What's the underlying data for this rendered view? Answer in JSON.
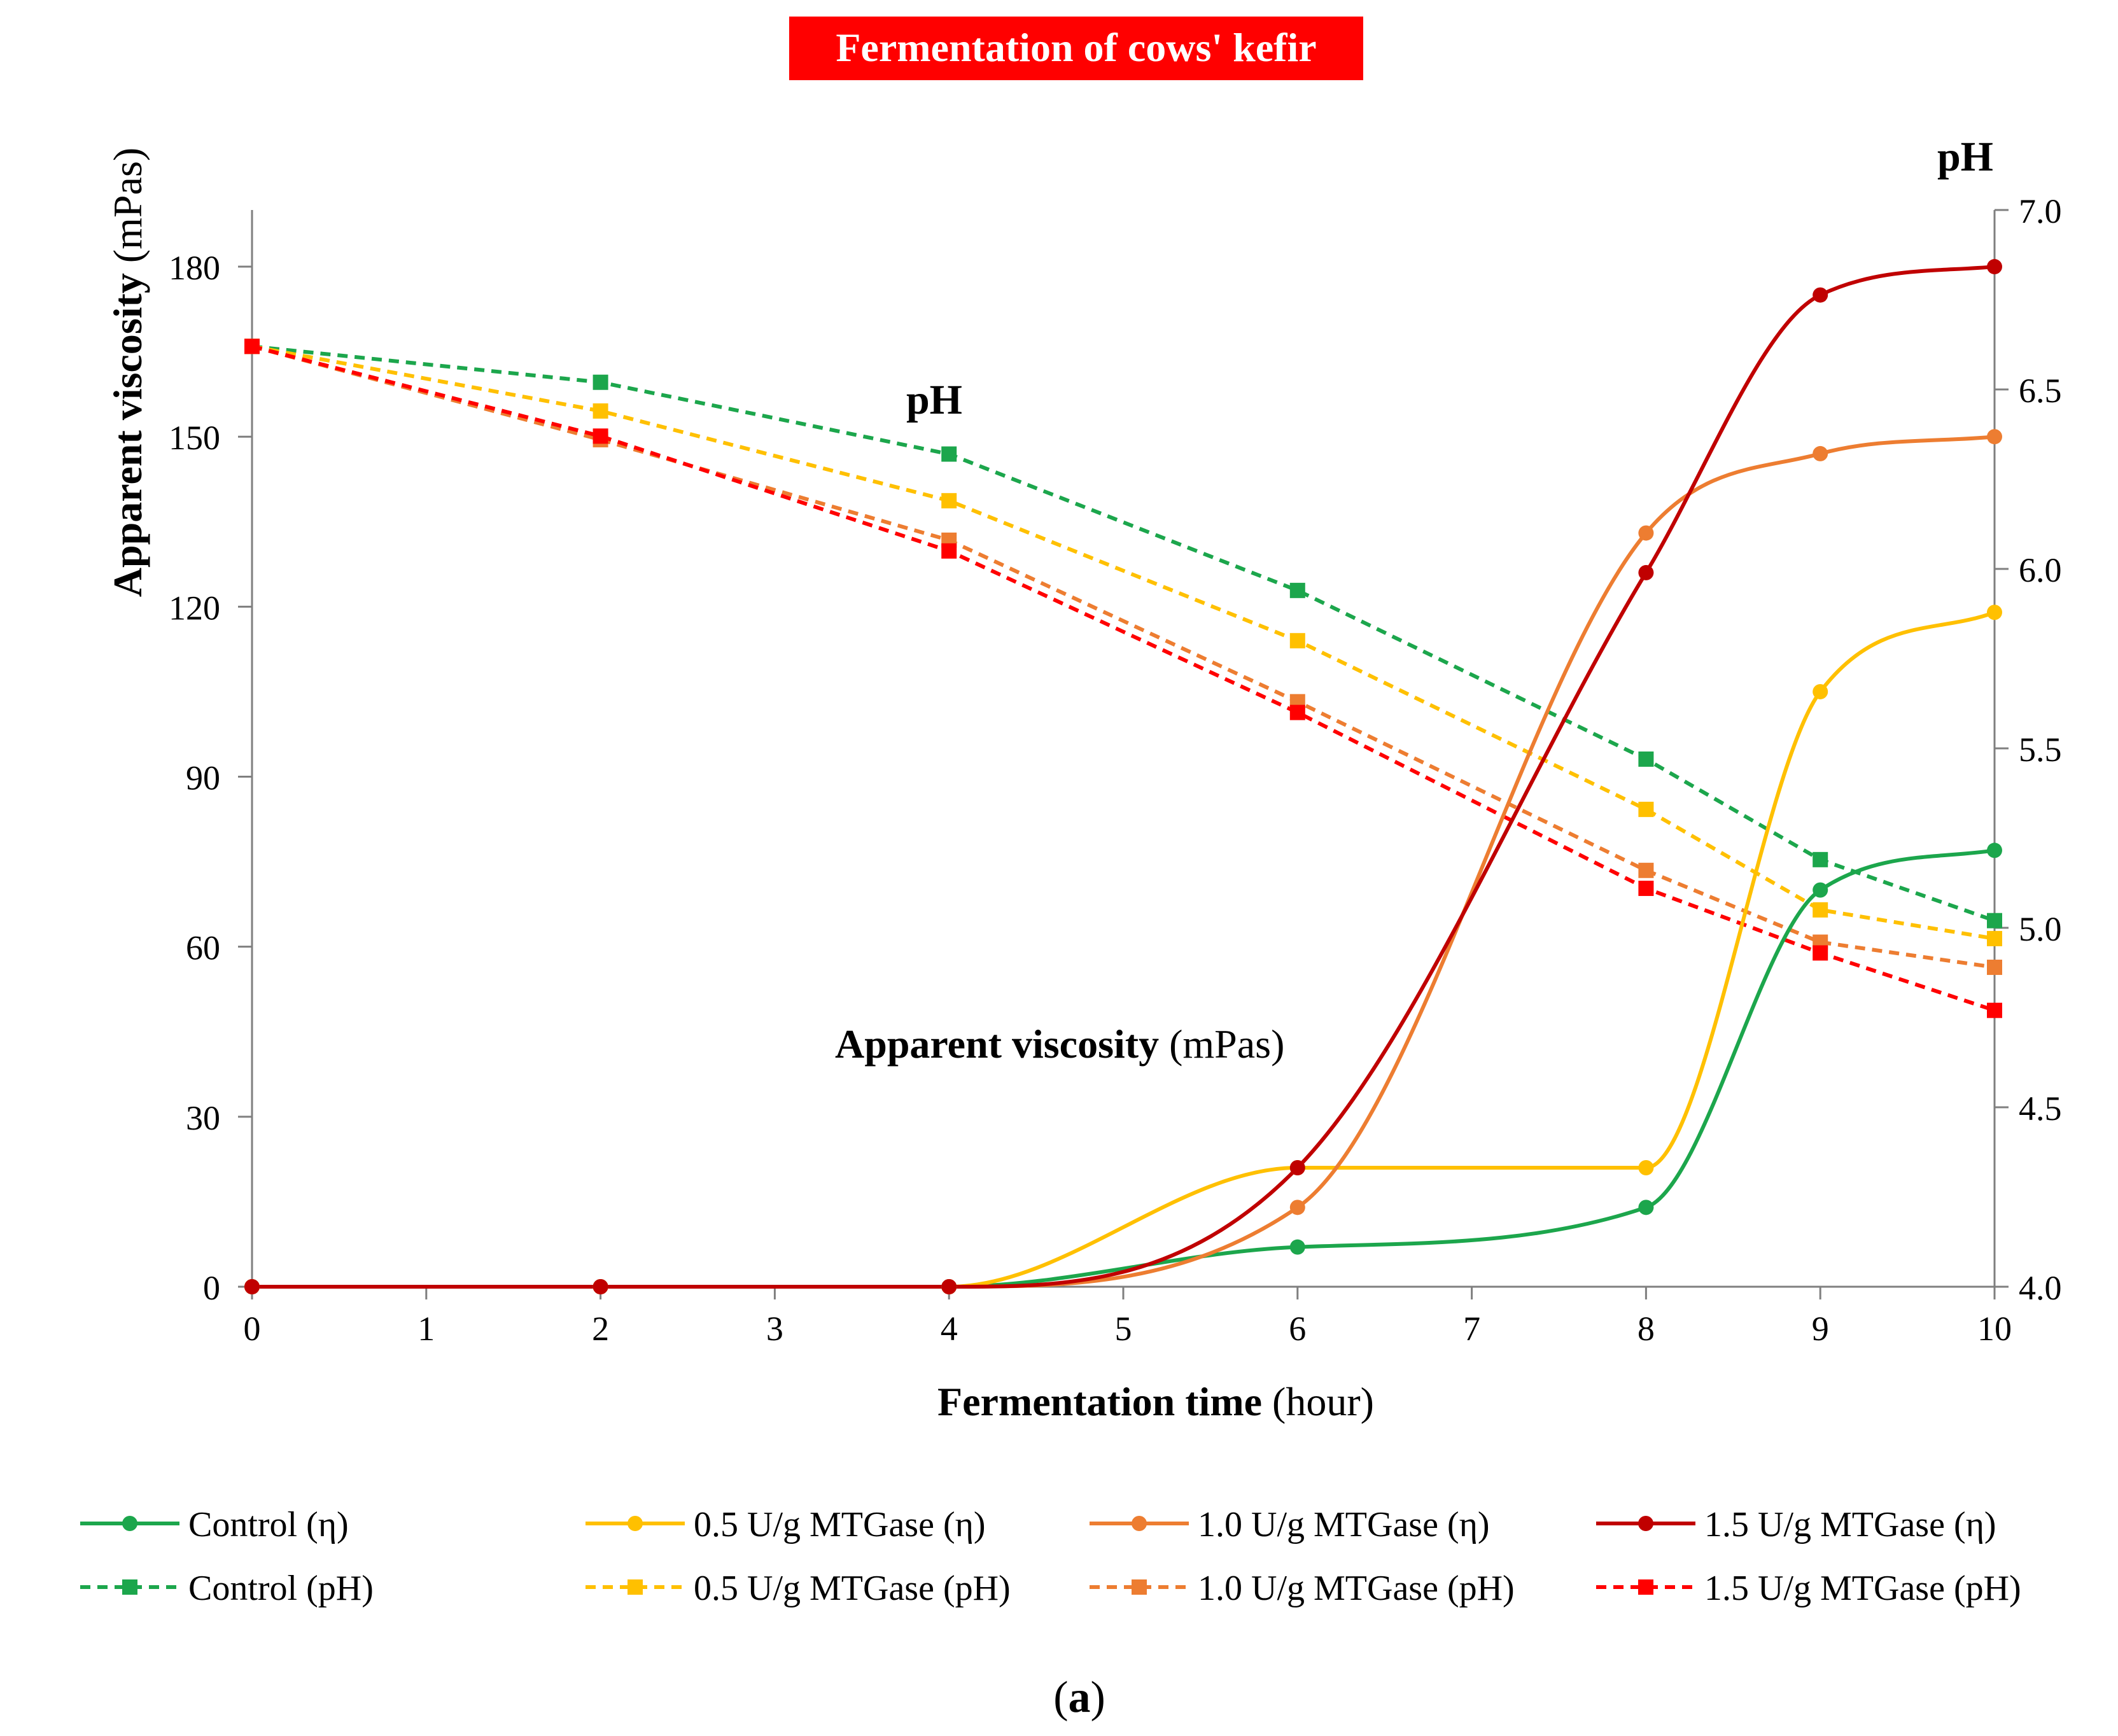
{
  "title": "Fermentation of cows' kefir",
  "title_bg": "#ff0000",
  "caption_open": "(",
  "caption_letter": "a",
  "caption_close": ")",
  "annotations": {
    "ph_label": "pH",
    "viscosity_bold": "Apparent viscosity",
    "viscosity_unit": " (mPas)"
  },
  "chart_data": {
    "type": "line",
    "title": "Fermentation of cows' kefir",
    "x_axis": {
      "label_bold": "Fermentation time",
      "label_unit": " (hour)",
      "range": [
        0,
        10
      ],
      "ticks": [
        0,
        1,
        2,
        3,
        4,
        5,
        6,
        7,
        8,
        9,
        10
      ],
      "tick_labels": [
        "0",
        "1",
        "2",
        "3",
        "4",
        "5",
        "6",
        "7",
        "8",
        "9",
        "10"
      ]
    },
    "y_axis_left": {
      "label_bold": "Apparent viscosity",
      "label_unit": " (mPas)",
      "range": [
        0,
        190
      ],
      "ticks": [
        0,
        30,
        60,
        90,
        120,
        150,
        180
      ],
      "tick_labels": [
        "0",
        "30",
        "60",
        "90",
        "120",
        "150",
        "180"
      ]
    },
    "y_axis_right": {
      "label": "pH",
      "range": [
        4.0,
        7.0
      ],
      "ticks": [
        4.0,
        4.5,
        5.0,
        5.5,
        6.0,
        6.5,
        7.0
      ],
      "tick_labels": [
        "4.0",
        "4.5",
        "5.0",
        "5.5",
        "6.0",
        "6.5",
        "7.0"
      ]
    },
    "series": [
      {
        "name": "Control (η)",
        "axis": "left",
        "style": "solid",
        "marker": "circle",
        "color": "#1ca64c",
        "x": [
          0,
          2,
          4,
          6,
          8,
          9,
          10
        ],
        "y": [
          0,
          0,
          0,
          7,
          14,
          70,
          77
        ]
      },
      {
        "name": "0.5 U/g MTGase (η)",
        "axis": "left",
        "style": "solid",
        "marker": "circle",
        "color": "#ffc000",
        "x": [
          0,
          2,
          4,
          6,
          8,
          9,
          10
        ],
        "y": [
          0,
          0,
          0,
          21,
          21,
          105,
          119
        ]
      },
      {
        "name": "1.0 U/g MTGase (η)",
        "axis": "left",
        "style": "solid",
        "marker": "circle",
        "color": "#ed7d31",
        "x": [
          0,
          2,
          4,
          6,
          8,
          9,
          10
        ],
        "y": [
          0,
          0,
          0,
          14,
          133,
          147,
          150
        ]
      },
      {
        "name": "1.5 U/g MTGase (η)",
        "axis": "left",
        "style": "solid",
        "marker": "circle",
        "color": "#c00000",
        "x": [
          0,
          2,
          4,
          6,
          8,
          9,
          10
        ],
        "y": [
          0,
          0,
          0,
          21,
          126,
          175,
          180
        ]
      },
      {
        "name": "Control (pH)",
        "axis": "right",
        "style": "dashed",
        "marker": "square",
        "color": "#1ca64c",
        "x": [
          0,
          2,
          4,
          6,
          8,
          9,
          10
        ],
        "y": [
          6.62,
          6.52,
          6.32,
          5.94,
          5.47,
          5.19,
          5.02
        ]
      },
      {
        "name": "0.5 U/g MTGase (pH)",
        "axis": "right",
        "style": "dashed",
        "marker": "square",
        "color": "#ffc000",
        "x": [
          0,
          2,
          4,
          6,
          8,
          9,
          10
        ],
        "y": [
          6.62,
          6.44,
          6.19,
          5.8,
          5.33,
          5.05,
          4.97
        ]
      },
      {
        "name": "1.0 U/g MTGase (pH)",
        "axis": "right",
        "style": "dashed",
        "marker": "square",
        "color": "#ed7d31",
        "x": [
          0,
          2,
          4,
          6,
          8,
          9,
          10
        ],
        "y": [
          6.62,
          6.36,
          6.08,
          5.63,
          5.16,
          4.96,
          4.89
        ]
      },
      {
        "name": "1.5 U/g MTGase (pH)",
        "axis": "right",
        "style": "dashed",
        "marker": "square",
        "color": "#ff0000",
        "x": [
          0,
          2,
          4,
          6,
          8,
          9,
          10
        ],
        "y": [
          6.62,
          6.37,
          6.05,
          5.6,
          5.11,
          4.93,
          4.77
        ]
      }
    ],
    "legend": {
      "position": "bottom",
      "columns": 4
    }
  }
}
